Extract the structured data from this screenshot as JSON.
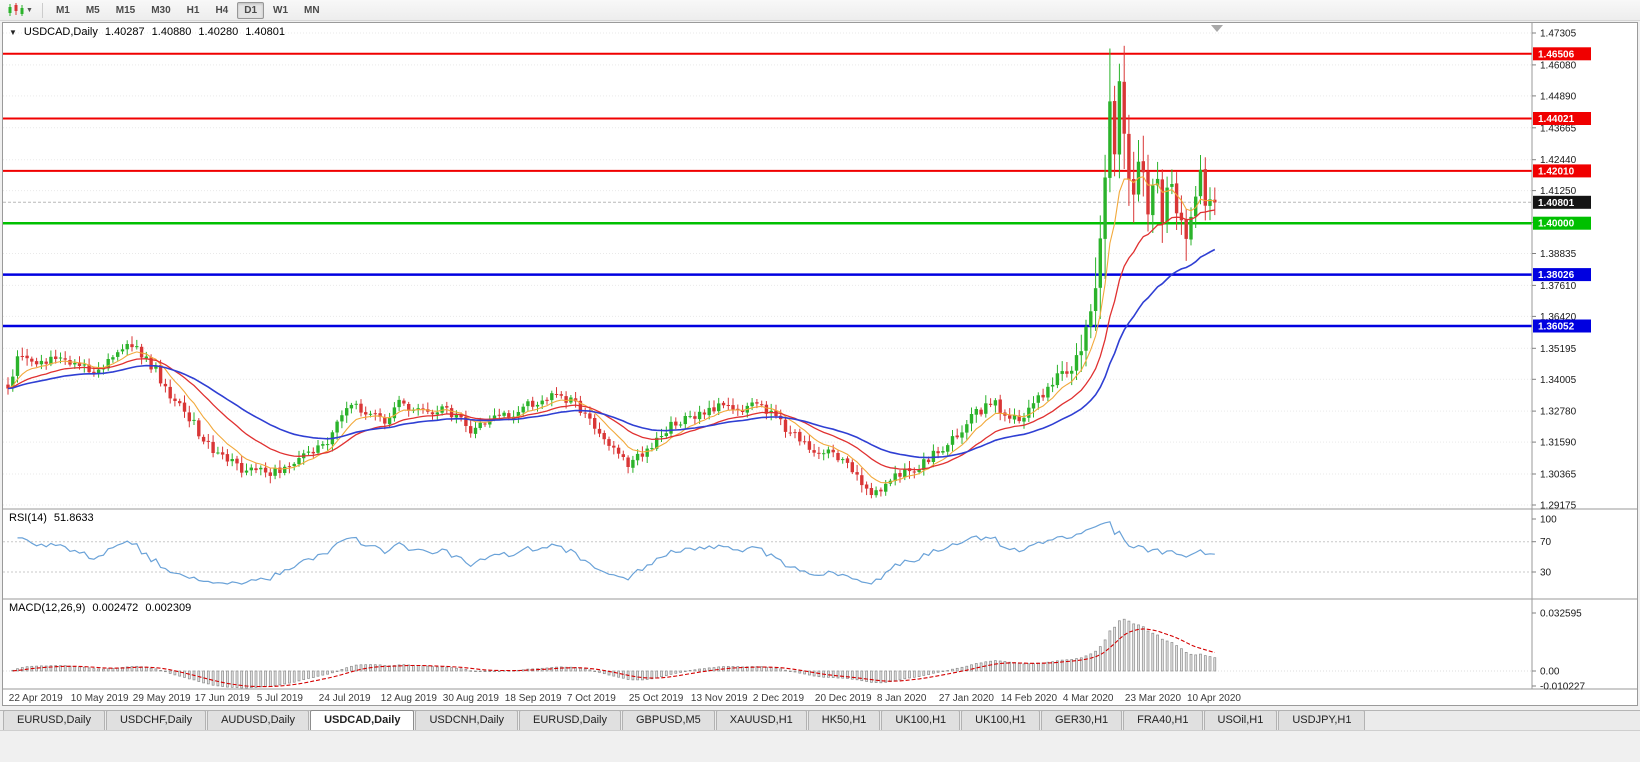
{
  "toolbar": {
    "chart_type_tooltip": "Candlestick chart",
    "timeframes": [
      {
        "label": "M1",
        "active": false
      },
      {
        "label": "M5",
        "active": false
      },
      {
        "label": "M15",
        "active": false
      },
      {
        "label": "M30",
        "active": false
      },
      {
        "label": "H1",
        "active": false
      },
      {
        "label": "H4",
        "active": false
      },
      {
        "label": "D1",
        "active": true
      },
      {
        "label": "W1",
        "active": false
      },
      {
        "label": "MN",
        "active": false
      }
    ]
  },
  "chart": {
    "header": {
      "collapse_icon": "▼",
      "symbol": "USDCAD,Daily",
      "open": "1.40287",
      "high": "1.40880",
      "low": "1.40280",
      "close": "1.40801"
    },
    "price_axis": {
      "ticks": [
        "1.47305",
        "1.46080",
        "1.44890",
        "1.43665",
        "1.42440",
        "1.41250",
        "1.40025",
        "1.38835",
        "1.37610",
        "1.36420",
        "1.35195",
        "1.34005",
        "1.32780",
        "1.31590",
        "1.30365",
        "1.29175"
      ]
    },
    "levels": [
      {
        "label": "1.46506",
        "price": 1.46506,
        "color": "#f00000",
        "width": 2
      },
      {
        "label": "1.44021",
        "price": 1.44021,
        "color": "#f00000",
        "width": 2
      },
      {
        "label": "1.42010",
        "price": 1.4201,
        "color": "#f00000",
        "width": 2
      },
      {
        "label": "1.40000",
        "price": 1.4,
        "color": "#00c000",
        "width": 2.5
      },
      {
        "label": "1.38026",
        "price": 1.38026,
        "color": "#0000e0",
        "width": 2.5
      },
      {
        "label": "1.36052",
        "price": 1.36052,
        "color": "#0000e0",
        "width": 2.5
      }
    ],
    "current_price": {
      "label": "1.40801",
      "price": 1.40801,
      "badge_color": "#151515",
      "line_color": "#b8b8b8"
    }
  },
  "rsi": {
    "name": "RSI(14)",
    "value": "51.8633",
    "ticks": [
      "100",
      "70",
      "30"
    ],
    "levels": [
      70,
      30
    ],
    "line_color": "#6aa2d8"
  },
  "macd": {
    "name": "MACD(12,26,9)",
    "values": [
      "0.002472",
      "0.002309"
    ],
    "ticks": [
      "0.032595",
      "0.00",
      "-0.010227"
    ],
    "signal_color": "#d40000",
    "hist_fill": "#e4e4e4",
    "hist_stroke": "#8a8a8a"
  },
  "date_axis": {
    "labels": [
      {
        "bar": 1,
        "label": "22 Apr 2019"
      },
      {
        "bar": 14,
        "label": "10 May 2019"
      },
      {
        "bar": 27,
        "label": "29 May 2019"
      },
      {
        "bar": 40,
        "label": "17 Jun 2019"
      },
      {
        "bar": 53,
        "label": "5 Jul 2019"
      },
      {
        "bar": 66,
        "label": "24 Jul 2019"
      },
      {
        "bar": 79,
        "label": "12 Aug 2019"
      },
      {
        "bar": 92,
        "label": "30 Aug 2019"
      },
      {
        "bar": 105,
        "label": "18 Sep 2019"
      },
      {
        "bar": 118,
        "label": "7 Oct 2019"
      },
      {
        "bar": 131,
        "label": "25 Oct 2019"
      },
      {
        "bar": 144,
        "label": "13 Nov 2019"
      },
      {
        "bar": 157,
        "label": "2 Dec 2019"
      },
      {
        "bar": 170,
        "label": "20 Dec 2019"
      },
      {
        "bar": 183,
        "label": "8 Jan 2020"
      },
      {
        "bar": 196,
        "label": "27 Jan 2020"
      },
      {
        "bar": 209,
        "label": "14 Feb 2020"
      },
      {
        "bar": 222,
        "label": "4 Mar 2020"
      },
      {
        "bar": 235,
        "label": "23 Mar 2020"
      },
      {
        "bar": 248,
        "label": "10 Apr 2020"
      }
    ]
  },
  "tabs": [
    {
      "label": "EURUSD,Daily",
      "active": false
    },
    {
      "label": "USDCHF,Daily",
      "active": false
    },
    {
      "label": "AUDUSD,Daily",
      "active": false
    },
    {
      "label": "USDCAD,Daily",
      "active": true
    },
    {
      "label": "USDCNH,Daily",
      "active": false
    },
    {
      "label": "EURUSD,Daily",
      "active": false
    },
    {
      "label": "GBPUSD,M5",
      "active": false
    },
    {
      "label": "XAUUSD,H1",
      "active": false
    },
    {
      "label": "HK50,H1",
      "active": false
    },
    {
      "label": "UK100,H1",
      "active": false
    },
    {
      "label": "UK100,H1",
      "active": false
    },
    {
      "label": "GER30,H1",
      "active": false
    },
    {
      "label": "FRA40,H1",
      "active": false
    },
    {
      "label": "USOil,H1",
      "active": false
    },
    {
      "label": "USDJPY,H1",
      "active": false
    }
  ],
  "chart_data": {
    "type": "candlestick",
    "symbol": "USDCAD",
    "timeframe": "Daily",
    "bars": 254,
    "ylim": [
      1.29175,
      1.47305
    ],
    "last_close": 1.40801,
    "up_color": "#2bb32b",
    "down_color": "#d93636",
    "ma": [
      {
        "period": 8,
        "color": "#f2a93b",
        "width": 1.1
      },
      {
        "period": 20,
        "color": "#e03131",
        "width": 1.3
      },
      {
        "period": 40,
        "color": "#2f3fd3",
        "width": 1.6
      }
    ],
    "rsi_period": 14,
    "macd_params": [
      12,
      26,
      9
    ],
    "price_anchors": [
      [
        0,
        1.3355
      ],
      [
        2,
        1.347
      ],
      [
        3,
        1.35
      ],
      [
        5,
        1.345
      ],
      [
        8,
        1.3468
      ],
      [
        11,
        1.348
      ],
      [
        14,
        1.3462
      ],
      [
        17,
        1.3432
      ],
      [
        20,
        1.3452
      ],
      [
        23,
        1.3488
      ],
      [
        26,
        1.3535
      ],
      [
        28,
        1.3502
      ],
      [
        31,
        1.3435
      ],
      [
        34,
        1.3338
      ],
      [
        37,
        1.3288
      ],
      [
        40,
        1.3196
      ],
      [
        43,
        1.313
      ],
      [
        46,
        1.309
      ],
      [
        49,
        1.3058
      ],
      [
        52,
        1.3046
      ],
      [
        55,
        1.3035
      ],
      [
        58,
        1.306
      ],
      [
        61,
        1.3105
      ],
      [
        64,
        1.3132
      ],
      [
        67,
        1.317
      ],
      [
        70,
        1.3255
      ],
      [
        73,
        1.3305
      ],
      [
        76,
        1.3262
      ],
      [
        79,
        1.3238
      ],
      [
        82,
        1.3305
      ],
      [
        85,
        1.329
      ],
      [
        88,
        1.3268
      ],
      [
        91,
        1.3292
      ],
      [
        94,
        1.3258
      ],
      [
        97,
        1.3198
      ],
      [
        100,
        1.3232
      ],
      [
        103,
        1.3252
      ],
      [
        106,
        1.3262
      ],
      [
        109,
        1.3298
      ],
      [
        112,
        1.3325
      ],
      [
        115,
        1.3332
      ],
      [
        118,
        1.3322
      ],
      [
        121,
        1.3262
      ],
      [
        124,
        1.3198
      ],
      [
        127,
        1.3122
      ],
      [
        130,
        1.3075
      ],
      [
        133,
        1.3108
      ],
      [
        136,
        1.3165
      ],
      [
        139,
        1.3225
      ],
      [
        142,
        1.3248
      ],
      [
        145,
        1.327
      ],
      [
        148,
        1.3292
      ],
      [
        151,
        1.3306
      ],
      [
        154,
        1.3288
      ],
      [
        157,
        1.3298
      ],
      [
        160,
        1.3262
      ],
      [
        163,
        1.3212
      ],
      [
        166,
        1.3172
      ],
      [
        169,
        1.3118
      ],
      [
        172,
        1.3122
      ],
      [
        175,
        1.3098
      ],
      [
        178,
        1.3022
      ],
      [
        181,
        1.2962
      ],
      [
        184,
        1.2996
      ],
      [
        187,
        1.3045
      ],
      [
        190,
        1.3062
      ],
      [
        193,
        1.3092
      ],
      [
        196,
        1.3136
      ],
      [
        199,
        1.3182
      ],
      [
        202,
        1.3258
      ],
      [
        205,
        1.3292
      ],
      [
        207,
        1.3302
      ],
      [
        209,
        1.3258
      ],
      [
        212,
        1.3242
      ],
      [
        215,
        1.3288
      ],
      [
        218,
        1.3378
      ],
      [
        221,
        1.3422
      ],
      [
        223,
        1.3448
      ],
      [
        225,
        1.353
      ],
      [
        227,
        1.366
      ],
      [
        229,
        1.39
      ],
      [
        230,
        1.408
      ],
      [
        231,
        1.447
      ],
      [
        232,
        1.433
      ],
      [
        233,
        1.449
      ],
      [
        234,
        1.442
      ],
      [
        235,
        1.4252
      ],
      [
        236,
        1.4142
      ],
      [
        237,
        1.4272
      ],
      [
        238,
        1.421
      ],
      [
        239,
        1.4072
      ],
      [
        240,
        1.4172
      ],
      [
        241,
        1.4116
      ],
      [
        242,
        1.4016
      ],
      [
        243,
        1.4108
      ],
      [
        244,
        1.4162
      ],
      [
        245,
        1.4046
      ],
      [
        246,
        1.3976
      ],
      [
        247,
        1.3926
      ],
      [
        248,
        1.4016
      ],
      [
        249,
        1.4112
      ],
      [
        250,
        1.4186
      ],
      [
        251,
        1.4076
      ],
      [
        252,
        1.4122
      ],
      [
        253,
        1.40801
      ]
    ],
    "vol_anchors": [
      [
        0,
        0.0045
      ],
      [
        40,
        0.0045
      ],
      [
        120,
        0.0042
      ],
      [
        200,
        0.0046
      ],
      [
        222,
        0.006
      ],
      [
        226,
        0.012
      ],
      [
        229,
        0.022
      ],
      [
        231,
        0.03
      ],
      [
        233,
        0.024
      ],
      [
        236,
        0.019
      ],
      [
        240,
        0.015
      ],
      [
        244,
        0.011
      ],
      [
        248,
        0.0095
      ],
      [
        253,
        0.0085
      ]
    ],
    "high_overrides": [
      [
        3,
        1.3522
      ],
      [
        26,
        1.3566
      ],
      [
        231,
        1.4671
      ],
      [
        233,
        1.4596
      ],
      [
        250,
        1.4262
      ]
    ],
    "low_overrides": [
      [
        181,
        1.2951
      ],
      [
        247,
        1.3855
      ]
    ]
  }
}
